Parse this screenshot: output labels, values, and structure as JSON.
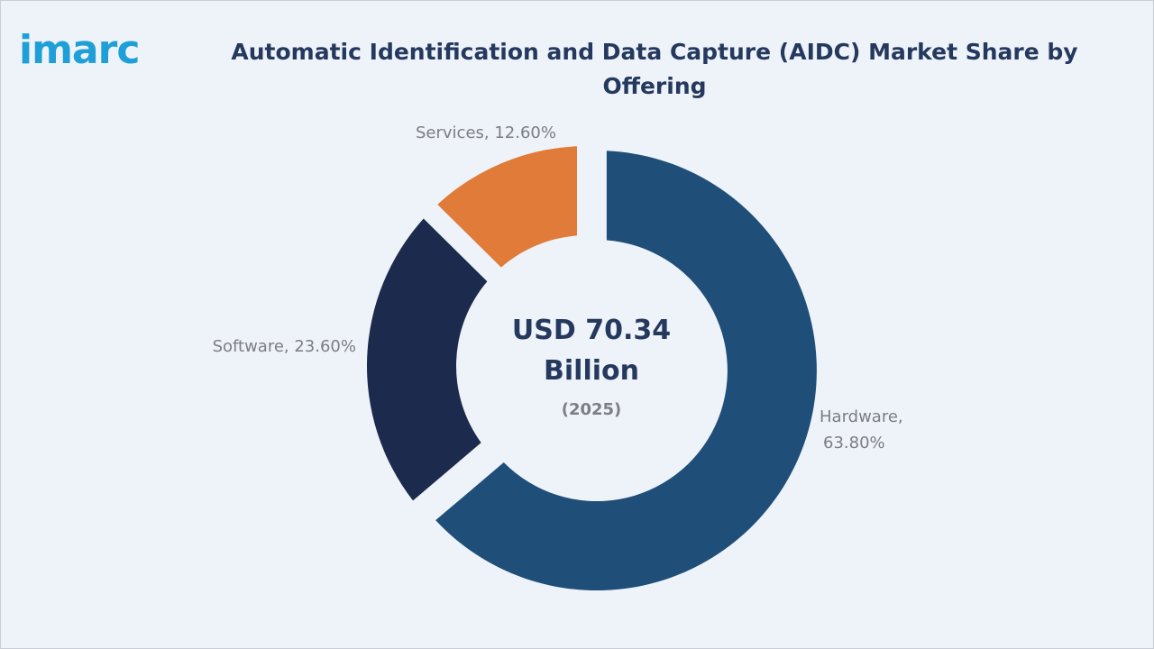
{
  "brand": {
    "logo_text": "imarc"
  },
  "colors": {
    "background": "#eef3f9",
    "logo": "#1f9fd8",
    "title": "#25395f",
    "label": "#7b7e82"
  },
  "chart_data": {
    "type": "pie",
    "title": "Automatic Identification and Data Capture (AIDC) Market Share by Offering",
    "center": {
      "value_line1": "USD 70.34",
      "value_line2": "Billion",
      "year": "(2025)"
    },
    "categories": [
      "Hardware",
      "Software",
      "Services"
    ],
    "values": [
      63.8,
      23.6,
      12.6
    ],
    "unit": "%",
    "labels": [
      "Hardware,",
      "Software, 23.60%",
      "Services, 12.60%"
    ],
    "labels_line2": [
      "63.80%",
      "",
      ""
    ],
    "colors": [
      "#1f4e79",
      "#1c2b4d",
      "#e07b39"
    ],
    "exploded": "Hardware",
    "legend": "none"
  }
}
